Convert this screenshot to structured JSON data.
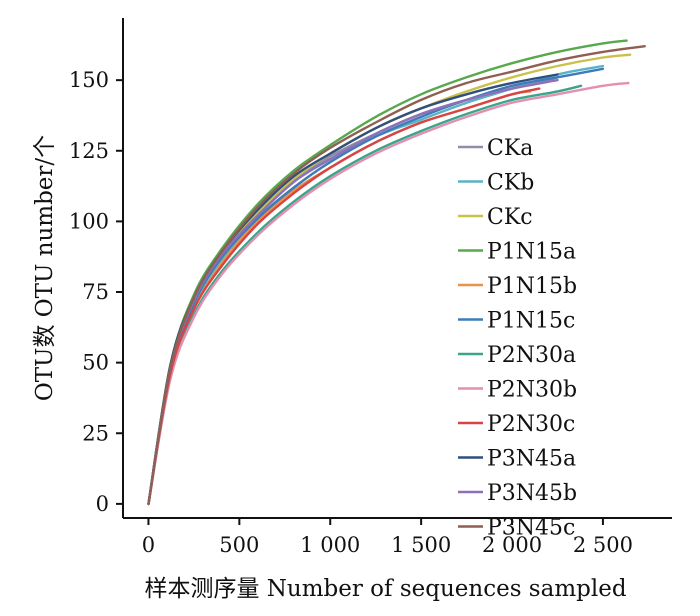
{
  "chart_data": {
    "type": "line",
    "title": "",
    "xlabel": "样本测序量  Number of sequences sampled",
    "ylabel": "OTU数  OTU number/个",
    "xlim": [
      -140,
      2880
    ],
    "ylim": [
      -5,
      172
    ],
    "xticks": [
      0,
      500,
      1000,
      1500,
      2000,
      2500
    ],
    "xtick_labels": [
      "0",
      "500",
      "1 000",
      "1 500",
      "2 000",
      "2 500"
    ],
    "yticks": [
      0,
      25,
      50,
      75,
      100,
      125,
      150
    ],
    "ytick_labels": [
      "0",
      "25",
      "50",
      "75",
      "100",
      "125",
      "150"
    ],
    "grid": false,
    "legend_position": "right",
    "series": [
      {
        "name": "CKa",
        "color": "#8e8ea8",
        "x": [
          0,
          120,
          250,
          400,
          600,
          800,
          1000,
          1250,
          1500,
          1750,
          2000,
          2250
        ],
        "y": [
          0,
          48,
          71,
          87,
          102,
          114,
          123,
          131,
          138,
          143,
          147,
          151
        ]
      },
      {
        "name": "CKb",
        "color": "#58b4c6",
        "x": [
          0,
          120,
          250,
          400,
          600,
          800,
          1000,
          1250,
          1500,
          1750,
          2000,
          2250,
          2500
        ],
        "y": [
          0,
          47,
          70,
          86,
          101,
          112,
          121,
          130,
          136,
          142,
          147,
          152,
          155
        ]
      },
      {
        "name": "CKc",
        "color": "#c9c14a",
        "x": [
          0,
          120,
          250,
          400,
          600,
          800,
          1000,
          1250,
          1500,
          1750,
          2000,
          2250,
          2500,
          2650
        ],
        "y": [
          0,
          48,
          72,
          88,
          103,
          115,
          124,
          133,
          140,
          146,
          151,
          155,
          158,
          159
        ]
      },
      {
        "name": "P1N15a",
        "color": "#58a84e",
        "x": [
          0,
          120,
          250,
          400,
          600,
          800,
          1000,
          1250,
          1500,
          1750,
          2000,
          2250,
          2500,
          2630
        ],
        "y": [
          0,
          49,
          74,
          90,
          106,
          118,
          127,
          137,
          145,
          151,
          156,
          160,
          163,
          164
        ]
      },
      {
        "name": "P1N15b",
        "color": "#e8924a",
        "x": [
          0,
          120,
          250,
          400,
          600,
          800,
          1000,
          1250,
          1500,
          1750,
          2000,
          2100
        ],
        "y": [
          0,
          46,
          69,
          85,
          100,
          111,
          119,
          128,
          135,
          140,
          145,
          146
        ]
      },
      {
        "name": "P1N15c",
        "color": "#3d7cb8",
        "x": [
          0,
          120,
          250,
          400,
          600,
          800,
          1000,
          1250,
          1500,
          1750,
          2000,
          2250,
          2500
        ],
        "y": [
          0,
          47,
          71,
          87,
          101,
          112,
          121,
          130,
          137,
          143,
          148,
          151,
          154
        ]
      },
      {
        "name": "P2N30a",
        "color": "#3aa58a",
        "x": [
          0,
          120,
          250,
          400,
          600,
          800,
          1000,
          1250,
          1500,
          1750,
          2000,
          2250,
          2380
        ],
        "y": [
          0,
          45,
          67,
          82,
          96,
          107,
          116,
          125,
          132,
          138,
          143,
          146,
          148
        ]
      },
      {
        "name": "P2N30b",
        "color": "#e28fb0",
        "x": [
          0,
          120,
          250,
          400,
          600,
          800,
          1000,
          1250,
          1500,
          1750,
          2000,
          2250,
          2500,
          2640
        ],
        "y": [
          0,
          44,
          66,
          81,
          95,
          106,
          115,
          124,
          131,
          137,
          142,
          145,
          148,
          149
        ]
      },
      {
        "name": "P2N30c",
        "color": "#d64545",
        "x": [
          0,
          120,
          250,
          400,
          600,
          800,
          1000,
          1250,
          1500,
          1750,
          2000,
          2150
        ],
        "y": [
          0,
          46,
          69,
          84,
          99,
          110,
          119,
          128,
          135,
          140,
          145,
          147
        ]
      },
      {
        "name": "P3N45a",
        "color": "#2f4f7f",
        "x": [
          0,
          120,
          250,
          400,
          600,
          800,
          1000,
          1250,
          1500,
          1750,
          2000,
          2250
        ],
        "y": [
          0,
          49,
          73,
          89,
          104,
          116,
          124,
          133,
          140,
          145,
          149,
          152
        ]
      },
      {
        "name": "P3N45b",
        "color": "#8e70b8",
        "x": [
          0,
          120,
          250,
          400,
          600,
          800,
          1000,
          1250,
          1500,
          1750,
          2000,
          2250
        ],
        "y": [
          0,
          48,
          72,
          88,
          102,
          114,
          122,
          131,
          138,
          143,
          147,
          150
        ]
      },
      {
        "name": "P3N45c",
        "color": "#8e5f52",
        "x": [
          0,
          120,
          250,
          400,
          600,
          800,
          1000,
          1250,
          1500,
          1750,
          2000,
          2250,
          2500,
          2730
        ],
        "y": [
          0,
          48,
          73,
          89,
          105,
          117,
          126,
          135,
          143,
          149,
          153,
          157,
          160,
          162
        ]
      }
    ]
  }
}
